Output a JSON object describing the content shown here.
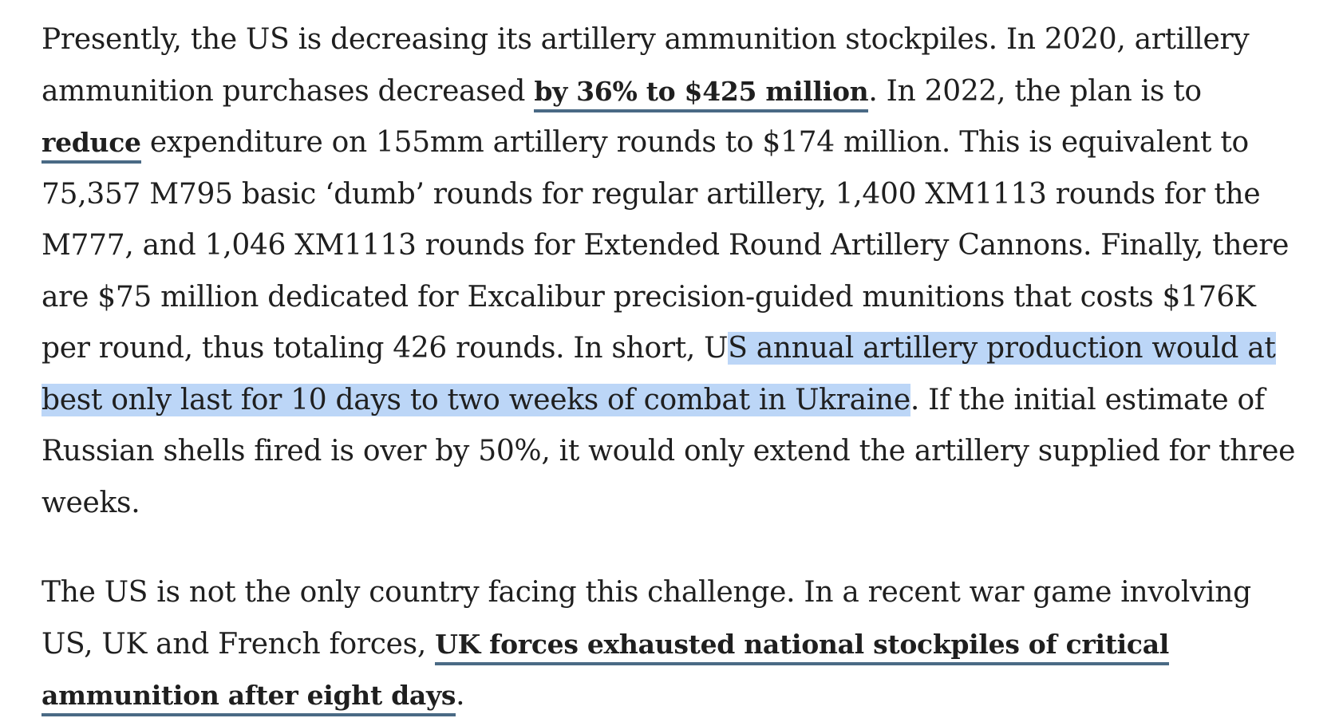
{
  "article": {
    "p1": {
      "t1": "Presently, the US is decreasing its artillery ammunition stockpiles. In 2020, artillery ammunition purchases decreased ",
      "link1": "by 36% to $425 million",
      "t2": ". In 2022, the plan is to ",
      "link2": "reduce",
      "t3": " expenditure on 155mm artillery rounds to $174 million. This is equivalent to 75,357 M795 basic ‘dumb’ rounds for regular artillery, 1,400 XM1113 rounds for the M777, and 1,046 XM1113 rounds for Extended Round Artillery Cannons. Finally, there are $75 million dedicated for Excalibur precision-guided munitions that costs $176K per round, thus totaling 426 rounds. In short, U",
      "selected": "S annual artillery production would at best only last for 10 days to two weeks of combat in Ukraine",
      "t4": ". If the initial estimate of Russian shells fired is over by 50%, it would only extend the artillery supplied for three weeks."
    },
    "p2": {
      "t1": "The US is not the only country facing this challenge. In a recent war game involving US, UK and French forces, ",
      "link1": "UK forces exhausted national stockpiles of critical ammunition after eight days",
      "t2": "."
    }
  },
  "colors": {
    "text": "#1f1f1f",
    "link_underline": "#4a6a85",
    "selection": "#bcd6f7",
    "background": "#ffffff"
  }
}
